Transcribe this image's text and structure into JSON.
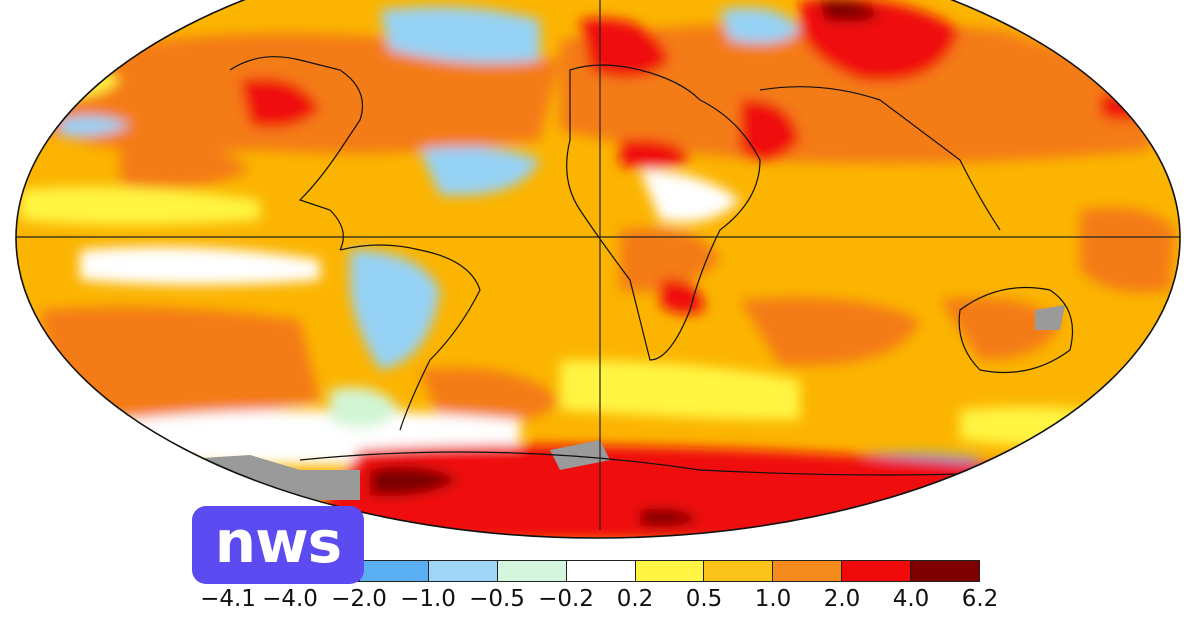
{
  "map": {
    "projection": "robinson",
    "colors": {
      "dark_red": "#7a0000",
      "red": "#f00a0a",
      "orange": "#f47c14",
      "amber": "#fbb400",
      "yellow": "#fff542",
      "white": "#ffffff",
      "pale_green": "#d2f5d4",
      "light_blue": "#96d2f5",
      "mid_blue": "#46a8ee",
      "gray": "#9a9a9a",
      "coastline": "#111111"
    }
  },
  "legend": {
    "labels": [
      "−4.1",
      "−4.0",
      "−2.0",
      "−1.0",
      "−0.5",
      "−0.2",
      "0.2",
      "0.5",
      "1.0",
      "2.0",
      "4.0",
      "6.2"
    ],
    "swatch_colors": [
      "#3070d8",
      "#5aaef2",
      "#9fd6f7",
      "#d4f6dc",
      "#ffffff",
      "#fff542",
      "#fbc21a",
      "#f58a1c",
      "#f00a0a",
      "#800000"
    ]
  },
  "logo": {
    "text": "nws",
    "color": "#5b4bf0"
  }
}
